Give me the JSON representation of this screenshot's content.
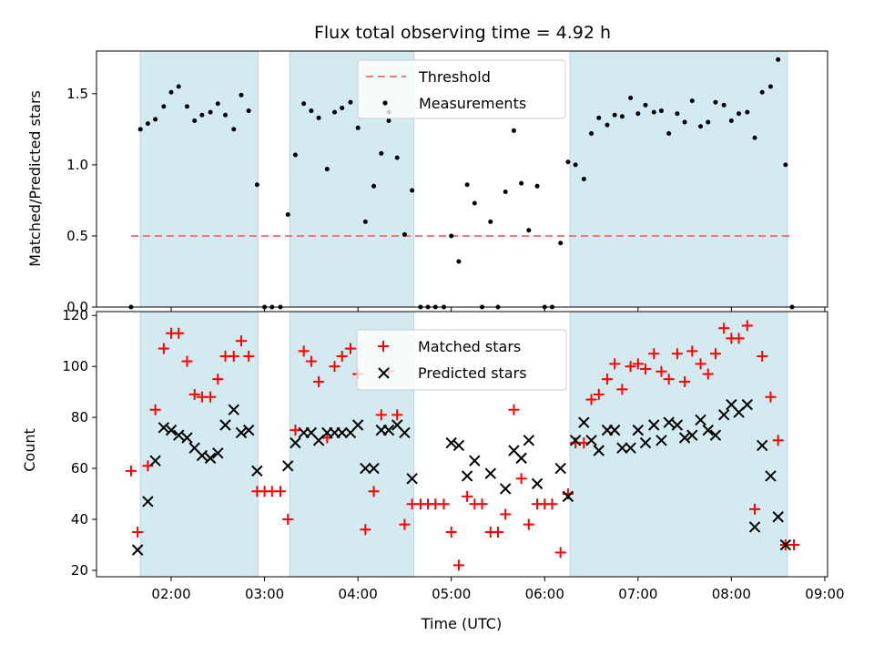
{
  "title": "Flux total observing time = 4.92 h",
  "xlabel": "Time (UTC)",
  "colors": {
    "shade": "#d3eaf0",
    "threshold": "#f07a7a",
    "measurement": "#000000",
    "matched": "#ff0000",
    "predicted": "#000000"
  },
  "chart_data": [
    {
      "type": "scatter",
      "ylabel": "Matched/Predicted stars",
      "x_unit": "hours UTC",
      "xlim": [
        1.2,
        9.03
      ],
      "ylim": [
        0,
        1.8
      ],
      "yticks": [
        0.0,
        0.5,
        1.0,
        1.5
      ],
      "ytick_labels": [
        "0.0",
        "0.5",
        "1.0",
        "1.5"
      ],
      "grid": false,
      "legend_position": "upper center",
      "shaded_intervals": [
        [
          1.67,
          2.93
        ],
        [
          3.27,
          4.6
        ],
        [
          6.27,
          8.6
        ]
      ],
      "threshold": {
        "name": "Threshold",
        "y": 0.5,
        "x_range": [
          1.57,
          8.65
        ]
      },
      "series": [
        {
          "name": "Measurements",
          "points": [
            [
              1.57,
              0.0
            ],
            [
              1.67,
              1.25
            ],
            [
              1.75,
              1.29
            ],
            [
              1.83,
              1.32
            ],
            [
              1.92,
              1.41
            ],
            [
              2.0,
              1.51
            ],
            [
              2.08,
              1.55
            ],
            [
              2.17,
              1.41
            ],
            [
              2.25,
              1.31
            ],
            [
              2.33,
              1.35
            ],
            [
              2.42,
              1.37
            ],
            [
              2.5,
              1.43
            ],
            [
              2.58,
              1.35
            ],
            [
              2.67,
              1.25
            ],
            [
              2.75,
              1.49
            ],
            [
              2.83,
              1.38
            ],
            [
              2.92,
              0.86
            ],
            [
              3.0,
              0.0
            ],
            [
              3.08,
              0.0
            ],
            [
              3.17,
              0.0
            ],
            [
              3.25,
              0.65
            ],
            [
              3.33,
              1.07
            ],
            [
              3.42,
              1.43
            ],
            [
              3.5,
              1.38
            ],
            [
              3.58,
              1.33
            ],
            [
              3.67,
              0.97
            ],
            [
              3.75,
              1.37
            ],
            [
              3.83,
              1.4
            ],
            [
              3.92,
              1.44
            ],
            [
              4.0,
              1.26
            ],
            [
              4.08,
              0.6
            ],
            [
              4.17,
              0.85
            ],
            [
              4.25,
              1.08
            ],
            [
              4.33,
              1.31
            ],
            [
              4.33,
              1.37
            ],
            [
              4.42,
              1.05
            ],
            [
              4.5,
              0.51
            ],
            [
              4.58,
              0.82
            ],
            [
              4.67,
              0.0
            ],
            [
              4.75,
              0.0
            ],
            [
              4.83,
              0.0
            ],
            [
              4.92,
              0.0
            ],
            [
              5.0,
              0.5
            ],
            [
              5.08,
              0.32
            ],
            [
              5.17,
              0.86
            ],
            [
              5.25,
              0.73
            ],
            [
              5.33,
              0.0
            ],
            [
              5.42,
              0.6
            ],
            [
              5.5,
              0.0
            ],
            [
              5.58,
              0.81
            ],
            [
              5.67,
              1.24
            ],
            [
              5.75,
              0.87
            ],
            [
              5.83,
              0.54
            ],
            [
              5.92,
              0.85
            ],
            [
              6.0,
              0.0
            ],
            [
              6.08,
              0.0
            ],
            [
              6.17,
              0.45
            ],
            [
              6.25,
              1.02
            ],
            [
              6.33,
              1.0
            ],
            [
              6.42,
              0.9
            ],
            [
              6.5,
              1.22
            ],
            [
              6.58,
              1.33
            ],
            [
              6.67,
              1.28
            ],
            [
              6.75,
              1.35
            ],
            [
              6.83,
              1.34
            ],
            [
              6.92,
              1.47
            ],
            [
              7.0,
              1.36
            ],
            [
              7.08,
              1.42
            ],
            [
              7.17,
              1.37
            ],
            [
              7.25,
              1.38
            ],
            [
              7.33,
              1.22
            ],
            [
              7.42,
              1.36
            ],
            [
              7.5,
              1.3
            ],
            [
              7.58,
              1.45
            ],
            [
              7.67,
              1.27
            ],
            [
              7.75,
              1.3
            ],
            [
              7.83,
              1.44
            ],
            [
              7.92,
              1.42
            ],
            [
              8.0,
              1.31
            ],
            [
              8.08,
              1.36
            ],
            [
              8.17,
              1.37
            ],
            [
              8.25,
              1.19
            ],
            [
              8.33,
              1.51
            ],
            [
              8.42,
              1.55
            ],
            [
              8.5,
              1.74
            ],
            [
              8.58,
              1.0
            ],
            [
              8.65,
              0.0
            ]
          ]
        }
      ]
    },
    {
      "type": "scatter",
      "ylabel": "Count",
      "x_unit": "hours UTC",
      "xlim": [
        1.2,
        9.03
      ],
      "ylim": [
        17.5,
        121.5
      ],
      "xticks": [
        2,
        3,
        4,
        5,
        6,
        7,
        8,
        9
      ],
      "xtick_labels": [
        "02:00",
        "03:00",
        "04:00",
        "05:00",
        "06:00",
        "07:00",
        "08:00",
        "09:00"
      ],
      "yticks": [
        20,
        40,
        60,
        80,
        100,
        120
      ],
      "ytick_labels": [
        "20",
        "40",
        "60",
        "80",
        "100",
        "120"
      ],
      "grid": false,
      "legend_position": "upper center",
      "shaded_intervals": [
        [
          1.67,
          2.93
        ],
        [
          3.27,
          4.6
        ],
        [
          6.27,
          8.6
        ]
      ],
      "series": [
        {
          "name": "Matched stars",
          "marker": "plus",
          "points": [
            [
              1.57,
              59
            ],
            [
              1.64,
              35
            ],
            [
              1.75,
              61
            ],
            [
              1.83,
              83
            ],
            [
              1.92,
              107
            ],
            [
              2.0,
              113
            ],
            [
              2.08,
              113
            ],
            [
              2.17,
              102
            ],
            [
              2.25,
              89
            ],
            [
              2.33,
              88
            ],
            [
              2.42,
              88
            ],
            [
              2.5,
              95
            ],
            [
              2.58,
              104
            ],
            [
              2.67,
              104
            ],
            [
              2.75,
              110
            ],
            [
              2.83,
              104
            ],
            [
              2.92,
              51
            ],
            [
              3.0,
              51
            ],
            [
              3.08,
              51
            ],
            [
              3.17,
              51
            ],
            [
              3.25,
              40
            ],
            [
              3.33,
              75
            ],
            [
              3.42,
              106
            ],
            [
              3.5,
              102
            ],
            [
              3.58,
              94
            ],
            [
              3.67,
              72
            ],
            [
              3.75,
              100
            ],
            [
              3.83,
              104
            ],
            [
              3.92,
              107
            ],
            [
              4.0,
              97
            ],
            [
              4.08,
              36
            ],
            [
              4.17,
              51
            ],
            [
              4.25,
              81
            ],
            [
              4.33,
              98
            ],
            [
              4.42,
              81
            ],
            [
              4.5,
              38
            ],
            [
              4.58,
              46
            ],
            [
              4.67,
              46
            ],
            [
              4.75,
              46
            ],
            [
              4.83,
              46
            ],
            [
              4.92,
              46
            ],
            [
              5.0,
              35
            ],
            [
              5.08,
              22
            ],
            [
              5.17,
              49
            ],
            [
              5.25,
              46
            ],
            [
              5.33,
              46
            ],
            [
              5.42,
              35
            ],
            [
              5.5,
              35
            ],
            [
              5.58,
              42
            ],
            [
              5.67,
              83
            ],
            [
              5.75,
              56
            ],
            [
              5.83,
              38
            ],
            [
              5.92,
              46
            ],
            [
              6.0,
              46
            ],
            [
              6.08,
              46
            ],
            [
              6.17,
              27
            ],
            [
              6.25,
              50
            ],
            [
              6.33,
              70
            ],
            [
              6.42,
              70
            ],
            [
              6.5,
              87
            ],
            [
              6.58,
              89
            ],
            [
              6.67,
              95
            ],
            [
              6.75,
              101
            ],
            [
              6.83,
              91
            ],
            [
              6.92,
              100
            ],
            [
              7.0,
              101
            ],
            [
              7.08,
              99
            ],
            [
              7.17,
              105
            ],
            [
              7.25,
              98
            ],
            [
              7.33,
              95
            ],
            [
              7.42,
              105
            ],
            [
              7.5,
              94
            ],
            [
              7.58,
              106
            ],
            [
              7.67,
              101
            ],
            [
              7.75,
              97
            ],
            [
              7.83,
              105
            ],
            [
              7.92,
              115
            ],
            [
              8.0,
              111
            ],
            [
              8.08,
              111
            ],
            [
              8.17,
              116
            ],
            [
              8.25,
              44
            ],
            [
              8.33,
              104
            ],
            [
              8.42,
              88
            ],
            [
              8.5,
              71
            ],
            [
              8.58,
              30
            ],
            [
              8.67,
              30
            ]
          ]
        },
        {
          "name": "Predicted stars",
          "marker": "x",
          "points": [
            [
              1.64,
              28
            ],
            [
              1.75,
              47
            ],
            [
              1.83,
              63
            ],
            [
              1.92,
              76
            ],
            [
              2.0,
              75
            ],
            [
              2.08,
              73
            ],
            [
              2.17,
              72
            ],
            [
              2.25,
              68
            ],
            [
              2.33,
              65
            ],
            [
              2.42,
              64
            ],
            [
              2.5,
              66
            ],
            [
              2.58,
              77
            ],
            [
              2.67,
              83
            ],
            [
              2.75,
              74
            ],
            [
              2.83,
              75
            ],
            [
              2.92,
              59
            ],
            [
              3.25,
              61
            ],
            [
              3.33,
              70
            ],
            [
              3.42,
              74
            ],
            [
              3.5,
              74
            ],
            [
              3.58,
              71
            ],
            [
              3.67,
              74
            ],
            [
              3.75,
              74
            ],
            [
              3.83,
              74
            ],
            [
              3.92,
              74
            ],
            [
              4.0,
              77
            ],
            [
              4.08,
              60
            ],
            [
              4.17,
              60
            ],
            [
              4.25,
              75
            ],
            [
              4.33,
              75
            ],
            [
              4.42,
              77
            ],
            [
              4.5,
              74
            ],
            [
              4.58,
              56
            ],
            [
              5.0,
              70
            ],
            [
              5.08,
              69
            ],
            [
              5.17,
              57
            ],
            [
              5.25,
              63
            ],
            [
              5.42,
              58
            ],
            [
              5.58,
              52
            ],
            [
              5.67,
              67
            ],
            [
              5.75,
              64
            ],
            [
              5.83,
              71
            ],
            [
              5.92,
              54
            ],
            [
              6.17,
              60
            ],
            [
              6.25,
              49
            ],
            [
              6.33,
              71
            ],
            [
              6.42,
              78
            ],
            [
              6.5,
              71
            ],
            [
              6.58,
              67
            ],
            [
              6.67,
              75
            ],
            [
              6.75,
              75
            ],
            [
              6.83,
              68
            ],
            [
              6.92,
              68
            ],
            [
              7.0,
              75
            ],
            [
              7.08,
              70
            ],
            [
              7.17,
              77
            ],
            [
              7.25,
              71
            ],
            [
              7.33,
              78
            ],
            [
              7.42,
              77
            ],
            [
              7.5,
              72
            ],
            [
              7.58,
              73
            ],
            [
              7.67,
              79
            ],
            [
              7.75,
              75
            ],
            [
              7.83,
              73
            ],
            [
              7.92,
              81
            ],
            [
              8.0,
              85
            ],
            [
              8.08,
              82
            ],
            [
              8.17,
              85
            ],
            [
              8.25,
              37
            ],
            [
              8.33,
              69
            ],
            [
              8.42,
              57
            ],
            [
              8.5,
              41
            ],
            [
              8.58,
              30
            ]
          ]
        }
      ]
    }
  ]
}
